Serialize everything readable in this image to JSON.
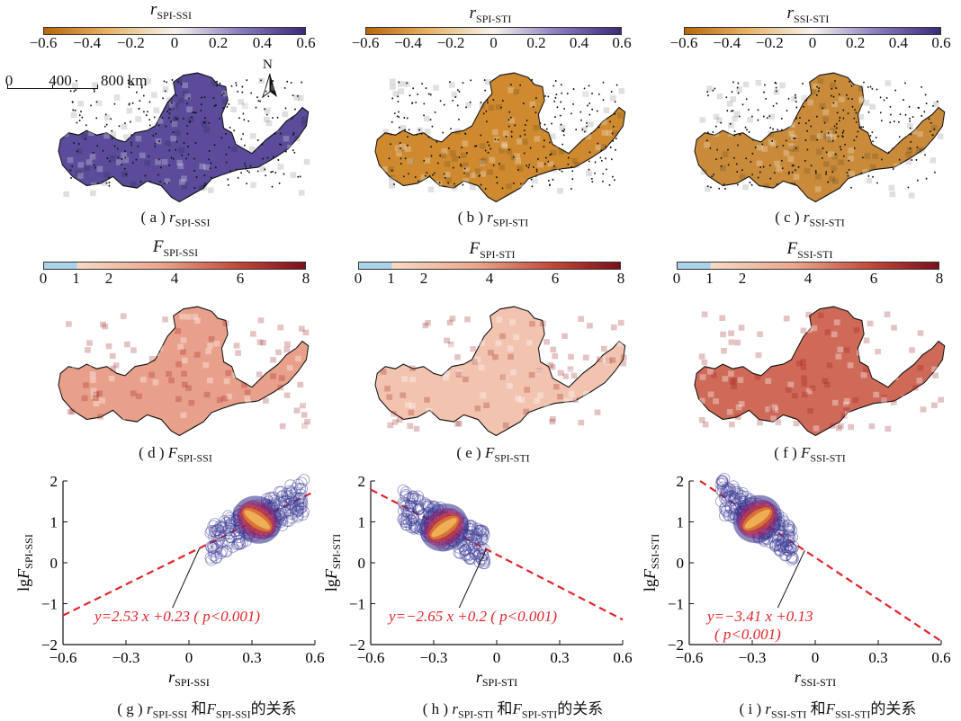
{
  "row1": {
    "titles": [
      {
        "var": "r",
        "sub": "SPI-SSI"
      },
      {
        "var": "r",
        "sub": "SPI-STI"
      },
      {
        "var": "r",
        "sub": "SSI-STI"
      }
    ],
    "ticks": [
      "−0.6",
      "−0.4",
      "−0.2",
      "0",
      "0.2",
      "0.4",
      "0.6"
    ],
    "captions": [
      {
        "pre": "( a ) ",
        "var": "r",
        "sub": "SPI-SSI"
      },
      {
        "pre": "( b ) ",
        "var": "r",
        "sub": "SPI-STI"
      },
      {
        "pre": "( c ) ",
        "var": "r",
        "sub": "SSI-STI"
      }
    ],
    "colors": {
      "neg": "#b8660a",
      "mid": "#f5f2ee",
      "pos": "#3b2a7a"
    },
    "map_fill": [
      "#5b4b9a",
      "#cf8a30",
      "#c98b3a"
    ]
  },
  "scalebar": {
    "labels": [
      "0",
      "400",
      "800 km"
    ],
    "north": "N"
  },
  "row2": {
    "titles": [
      {
        "var": "F",
        "sub": "SPI-SSI"
      },
      {
        "var": "F",
        "sub": "SPI-STI"
      },
      {
        "var": "F",
        "sub": "SSI-STI"
      }
    ],
    "ticks": [
      "0",
      "1",
      "2",
      "4",
      "6",
      "8"
    ],
    "captions": [
      {
        "pre": "( d ) ",
        "var": "F",
        "sub": "SPI-SSI"
      },
      {
        "pre": "( e ) ",
        "var": "F",
        "sub": "SPI-STI"
      },
      {
        "pre": "( f ) ",
        "var": "F",
        "sub": "SSI-STI"
      }
    ],
    "colors": {
      "low": "#a9d3ea",
      "mid": "#f7dac6",
      "high": "#7a0f1c"
    },
    "map_fill": [
      "#e8a08a",
      "#f2c4b0",
      "#d06a58"
    ]
  },
  "chart_data": [
    {
      "type": "scatter",
      "xlabel": {
        "var": "r",
        "sub": "SPI-SSI"
      },
      "ylabel": {
        "pre": "lg",
        "var": "F",
        "sub": "SPI-SSI"
      },
      "xlim": [
        -0.6,
        0.6
      ],
      "ylim": [
        -2,
        2
      ],
      "xticks": [
        "−0.6",
        "−0.3",
        "0",
        "0.3",
        "0.6"
      ],
      "yticks": [
        "2",
        "1",
        "0",
        "−1",
        "−2"
      ],
      "fit": {
        "slope": 2.53,
        "intercept": 0.23
      },
      "equation": "y=2.53 x +0.23   ( p<0.001)",
      "cloud": {
        "x_range": [
          0.1,
          0.55
        ],
        "y_center": [
          0.8,
          1.6
        ]
      },
      "caption": {
        "pre": "( g ) ",
        "var1": "r",
        "sub1": "SPI-SSI",
        "mid": " 和",
        "var2": "F",
        "sub2": "SPI-SSI",
        "post": "的关系"
      }
    },
    {
      "type": "scatter",
      "xlabel": {
        "var": "r",
        "sub": "SPI-STI"
      },
      "ylabel": {
        "pre": "lg",
        "var": "F",
        "sub": "SPI-STI"
      },
      "xlim": [
        -0.6,
        0.6
      ],
      "ylim": [
        -2,
        2
      ],
      "xticks": [
        "−0.6",
        "−0.3",
        "0",
        "0.3",
        "0.6"
      ],
      "yticks": [
        "2",
        "1",
        "0",
        "−1",
        "−2"
      ],
      "fit": {
        "slope": -2.65,
        "intercept": 0.2
      },
      "equation": "y=−2.65 x +0.2 ( p<0.001)",
      "cloud": {
        "x_range": [
          -0.45,
          -0.05
        ],
        "y_center": [
          1.4,
          0.6
        ]
      },
      "caption": {
        "pre": "( h ) ",
        "var1": "r",
        "sub1": "SPI-STI",
        "mid": " 和",
        "var2": "F",
        "sub2": "SPI-STI",
        "post": "的关系"
      }
    },
    {
      "type": "scatter",
      "xlabel": {
        "var": "r",
        "sub": "SSI-STI"
      },
      "ylabel": {
        "pre": "lg",
        "var": "F",
        "sub": "SSI-STI"
      },
      "xlim": [
        -0.6,
        0.6
      ],
      "ylim": [
        -2,
        2
      ],
      "xticks": [
        "−0.6",
        "−0.3",
        "0",
        "0.3",
        "0.6"
      ],
      "yticks": [
        "2",
        "1",
        "0",
        "−1",
        "−2"
      ],
      "fit": {
        "slope": -3.41,
        "intercept": 0.13
      },
      "equation": "y=−3.41 x +0.13",
      "equation2": "( p<0.001)",
      "cloud": {
        "x_range": [
          -0.45,
          -0.1
        ],
        "y_center": [
          1.6,
          0.6
        ]
      },
      "caption": {
        "pre": "( i ) ",
        "var1": "r",
        "sub1": "SSI-STI",
        "mid": " 和",
        "var2": "F",
        "sub2": "SSI-STI",
        "post": "的关系"
      }
    }
  ]
}
